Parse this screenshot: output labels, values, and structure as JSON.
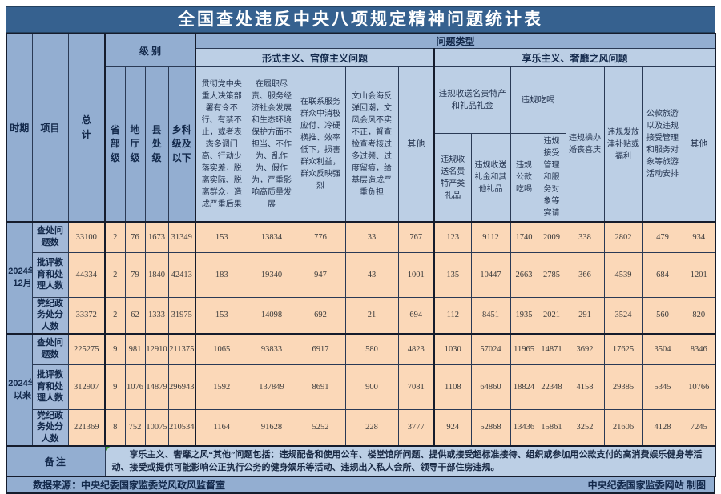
{
  "title": "全国查处违反中央八项规定精神问题统计表",
  "colors": {
    "title_bg": "#36618F",
    "header_medium_blue": "#93AED1",
    "header_light_blue": "#BCCFE5",
    "data_cell_peach": "#FBD8B8",
    "header_text": "#13294B",
    "title_text": "#FFFFFF"
  },
  "header": {
    "period": "时期",
    "item": "项目",
    "total": "总计",
    "level_group": "级 别",
    "problem_group": "问题类型",
    "levels": [
      "省部级",
      "地厅级",
      "县处级",
      "乡科级及以下"
    ],
    "formalism": {
      "label": "形式主义、官僚主义问题",
      "columns": [
        "贯彻党中央重大决策部署有令不行、有禁不止，或者表态多调门高、行动少落实差，脱离实际、脱离群众，造成严重后果",
        "在履职尽责、服务经济社会发展和生态环境保护方面不担当、不作为、乱作为、假作为，严重影响高质量发展",
        "在联系服务群众中消极应付、冷硬横推、效率低下，损害群众利益，群众反映强烈",
        "文山会海反弹回潮，文风会风不实不正，督查检查考核过多过频、过度留痕，给基层造成严重负担",
        "其他"
      ]
    },
    "hedonism": {
      "label": "享乐主义、奢靡之风问题",
      "gift_group": "违规收送名贵特产和礼品礼金",
      "gift_columns": [
        "违规收送名贵特产类礼品",
        "违规收送礼金和其他礼品"
      ],
      "dining_group": "违规吃喝",
      "dining_columns": [
        "违规公款吃喝",
        "违规接受管理和服务对象等宴请"
      ],
      "single_columns": [
        "违规操办婚丧喜庆",
        "违规发放津补贴或福利",
        "公款旅游以及违规接受管理和服务对象等旅游活动安排",
        "其他"
      ]
    }
  },
  "chart_data": {
    "type": "table",
    "title": "全国查处违反中央八项规定精神问题统计表",
    "column_keys": [
      "总计",
      "省部级",
      "地厅级",
      "县处级",
      "乡科级及以下",
      "贯彻党中央重大决策部署有令不行、有禁不止，或者表态多调门高、行动少落实差，脱离实际、脱离群众，造成严重后果",
      "在履职尽责、服务经济社会发展和生态环境保护方面不担当、不作为、乱作为、假作为，严重影响高质量发展",
      "在联系服务群众中消极应付、冷硬横推、效率低下，损害群众利益，群众反映强烈",
      "文山会海反弹回潮，文风会风不实不正，督查检查考核过多过频、过度留痕，给基层造成严重负担",
      "其他（形式主义、官僚主义问题）",
      "违规收送名贵特产类礼品",
      "违规收送礼金和其他礼品",
      "违规公款吃喝",
      "违规接受管理和服务对象等宴请",
      "违规操办婚丧喜庆",
      "违规发放津补贴或福利",
      "公款旅游以及违规接受管理和服务对象等旅游活动安排",
      "其他（享乐主义、奢靡之风问题）"
    ],
    "periods": [
      {
        "label": "2024年12月",
        "rows": [
          {
            "label": "查处问题数",
            "values": [
              33100,
              2,
              76,
              1673,
              31349,
              153,
              13834,
              776,
              33,
              767,
              123,
              9112,
              1740,
              2009,
              338,
              2802,
              479,
              934
            ]
          },
          {
            "label": "批评教育和处理人数",
            "values": [
              44334,
              2,
              79,
              1840,
              42413,
              183,
              19340,
              947,
              43,
              1001,
              135,
              10447,
              2663,
              2785,
              366,
              4539,
              684,
              1201
            ]
          },
          {
            "label": "党纪政务处分人数",
            "values": [
              33372,
              2,
              62,
              1333,
              31975,
              153,
              14098,
              692,
              21,
              694,
              112,
              8451,
              1935,
              2021,
              291,
              3524,
              560,
              820
            ]
          }
        ]
      },
      {
        "label": "2024年以来",
        "rows": [
          {
            "label": "查处问题数",
            "values": [
              225275,
              9,
              981,
              12910,
              211375,
              1065,
              93833,
              6917,
              580,
              4823,
              1030,
              57024,
              11965,
              14871,
              3692,
              17625,
              3504,
              8346
            ]
          },
          {
            "label": "批评教育和处理人数",
            "values": [
              312907,
              9,
              1076,
              14879,
              296943,
              1592,
              137849,
              8691,
              900,
              7081,
              1108,
              64860,
              18824,
              22348,
              4158,
              29385,
              5345,
              10766
            ]
          },
          {
            "label": "党纪政务处分人数",
            "values": [
              221369,
              8,
              752,
              10075,
              210534,
              1164,
              91628,
              5252,
              228,
              3777,
              924,
              52868,
              13436,
              15861,
              3252,
              21606,
              4128,
              7245
            ]
          }
        ]
      }
    ]
  },
  "remark": {
    "label": "备注",
    "text": "享乐主义、奢靡之风“其他”问题包括：违规配备和使用公车、楼堂馆所问题、提供或接受超标准接待、组织或参加用公款支付的高消费娱乐健身等活动、接受或提供可能影响公正执行公务的健身娱乐等活动、违规出入私人会所、领导干部住房违规。"
  },
  "footer": {
    "source": "数据来源：中央纪委国家监委党风政风监督室",
    "credit": "中央纪委国家监委网站 制图"
  }
}
